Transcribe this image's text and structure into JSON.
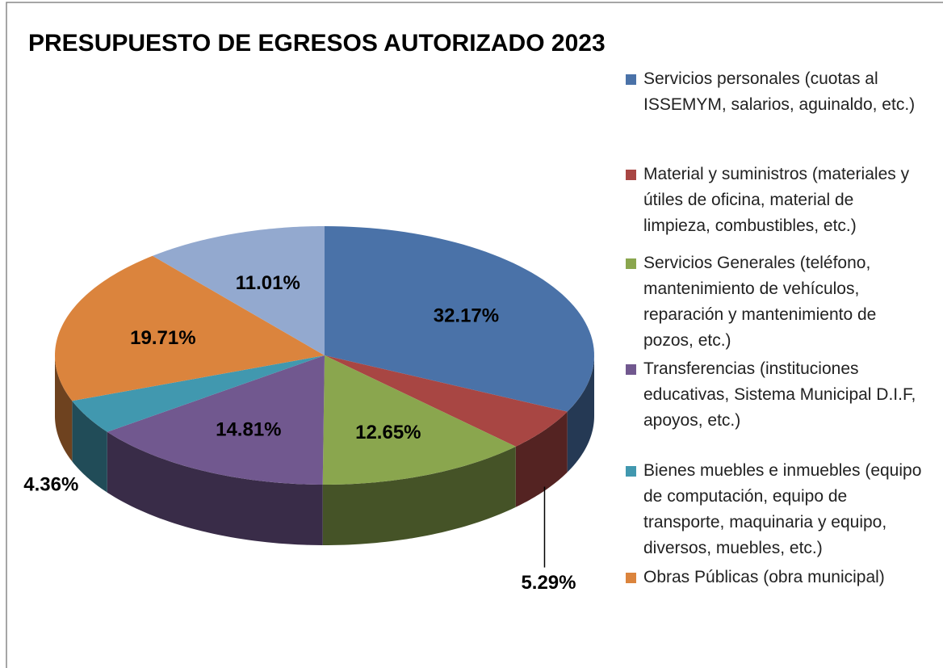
{
  "chart_data": {
    "type": "pie",
    "title": "PRESUPUESTO DE EGRESOS AUTORIZADO 2023",
    "categories": [
      "Servicios personales (cuotas al ISSEMYM, salarios, aguinaldo, etc.)",
      "Material y suministros (materiales y útiles de oficina, material de limpieza, combustibles, etc.)",
      "Servicios Generales (teléfono, mantenimiento de vehículos, reparación y mantenimiento de pozos, etc.)",
      "Transferencias (instituciones educativas, Sistema Municipal D.I.F, apoyos, etc.)",
      "Bienes muebles e inmuebles (equipo de computación, equipo de transporte, maquinaria y equipo, diversos, muebles, etc.)",
      "Obras Públicas (obra municipal)",
      null
    ],
    "values": [
      32.17,
      5.29,
      12.65,
      14.81,
      4.36,
      19.71,
      11.01
    ],
    "value_labels": [
      "32.17%",
      "5.29%",
      "12.65%",
      "14.81%",
      "4.36%",
      "19.71%",
      "11.01%"
    ],
    "colors": [
      "#4a72a8",
      "#a84643",
      "#8aa64e",
      "#71588f",
      "#4198af",
      "#db843d",
      "#93a9cf"
    ]
  }
}
